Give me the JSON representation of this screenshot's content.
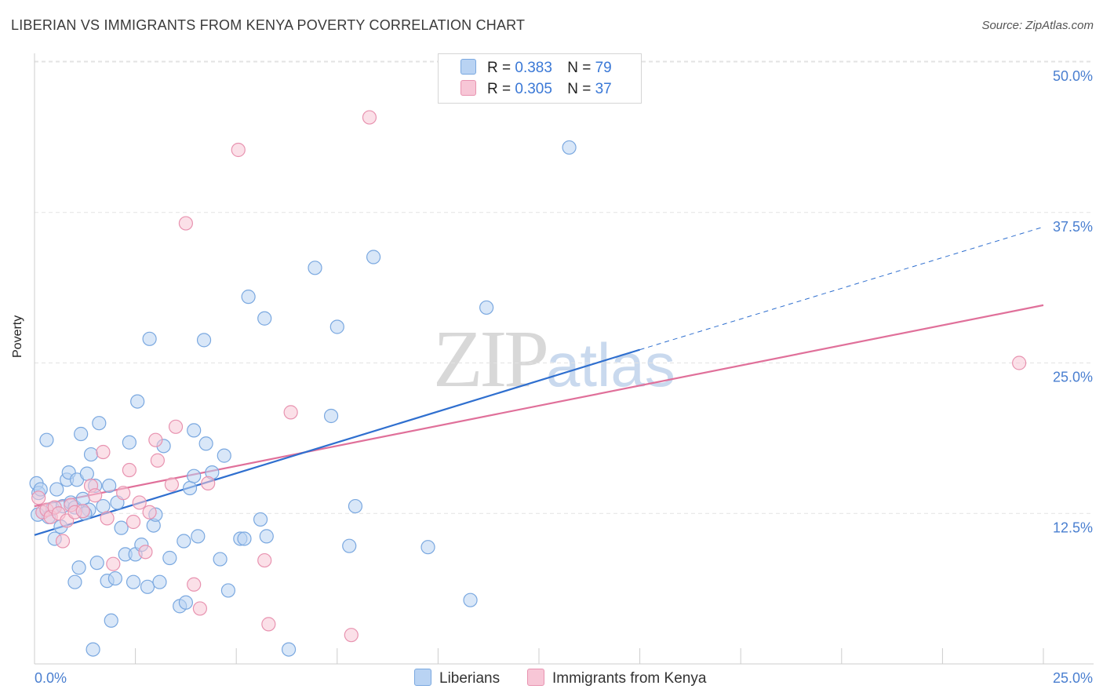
{
  "header": {
    "title": "LIBERIAN VS IMMIGRANTS FROM KENYA POVERTY CORRELATION CHART",
    "source": "Source: ZipAtlas.com"
  },
  "watermark": {
    "zip": "ZIP",
    "atlas": "atlas"
  },
  "legend": {
    "series": [
      {
        "r_label": "R =",
        "r_value": "0.383",
        "n_label": "N =",
        "n_value": "79"
      },
      {
        "r_label": "R =",
        "r_value": "0.305",
        "n_label": "N =",
        "n_value": "37"
      }
    ]
  },
  "bottom_legend": {
    "liberians": "Liberians",
    "kenya": "Immigrants from Kenya"
  },
  "colors": {
    "liberians_fill": "#b9d3f3",
    "liberians_stroke": "#7aa8e0",
    "liberians_line": "#2f6fcf",
    "kenya_fill": "#f7c6d6",
    "kenya_stroke": "#e893b0",
    "kenya_line": "#e0709a",
    "grid": "#e3e3e3",
    "axis": "#cccccc",
    "tick_text": "#4a7fd0"
  },
  "chart_data": {
    "type": "scatter",
    "title": "LIBERIAN VS IMMIGRANTS FROM KENYA POVERTY CORRELATION CHART",
    "xlabel": "",
    "ylabel": "Poverty",
    "xlim": [
      0,
      25
    ],
    "ylim": [
      0,
      50.0
    ],
    "x_tick_labels": [
      "0.0%",
      "25.0%"
    ],
    "y_ticks": [
      12.5,
      25.0,
      37.5,
      50.0
    ],
    "y_tick_labels": [
      "12.5%",
      "25.0%",
      "37.5%",
      "50.0%"
    ],
    "series": [
      {
        "name": "Liberians",
        "r": 0.383,
        "n": 79,
        "trend": {
          "x0": 0,
          "y0": 10.7,
          "x1": 15,
          "y1": 26.1,
          "dash_to_x": 25,
          "dash_to_y": 36.3
        },
        "points": [
          [
            0.05,
            15.0
          ],
          [
            0.1,
            14.2
          ],
          [
            0.15,
            14.5
          ],
          [
            0.2,
            12.6
          ],
          [
            0.3,
            18.6
          ],
          [
            0.35,
            12.2
          ],
          [
            0.45,
            12.9
          ],
          [
            0.5,
            10.4
          ],
          [
            0.55,
            14.5
          ],
          [
            0.65,
            11.4
          ],
          [
            0.7,
            13.1
          ],
          [
            0.8,
            15.3
          ],
          [
            0.85,
            15.9
          ],
          [
            0.9,
            13.4
          ],
          [
            1.0,
            13.0
          ],
          [
            1.0,
            6.8
          ],
          [
            1.05,
            15.3
          ],
          [
            1.1,
            8.0
          ],
          [
            1.15,
            19.1
          ],
          [
            1.2,
            13.7
          ],
          [
            1.3,
            15.8
          ],
          [
            1.35,
            12.8
          ],
          [
            1.4,
            17.4
          ],
          [
            1.45,
            1.2
          ],
          [
            1.5,
            14.8
          ],
          [
            1.55,
            8.4
          ],
          [
            1.6,
            20.0
          ],
          [
            1.7,
            13.1
          ],
          [
            1.8,
            6.9
          ],
          [
            1.85,
            14.8
          ],
          [
            1.9,
            3.6
          ],
          [
            2.0,
            7.1
          ],
          [
            2.05,
            13.4
          ],
          [
            2.15,
            11.3
          ],
          [
            2.25,
            9.1
          ],
          [
            2.35,
            18.4
          ],
          [
            2.45,
            6.8
          ],
          [
            2.5,
            9.1
          ],
          [
            2.55,
            21.8
          ],
          [
            2.65,
            9.9
          ],
          [
            2.8,
            6.4
          ],
          [
            2.85,
            27.0
          ],
          [
            2.95,
            11.5
          ],
          [
            3.0,
            12.4
          ],
          [
            3.1,
            6.8
          ],
          [
            3.2,
            18.1
          ],
          [
            3.35,
            8.8
          ],
          [
            3.6,
            4.8
          ],
          [
            3.7,
            10.2
          ],
          [
            3.75,
            5.1
          ],
          [
            3.85,
            14.6
          ],
          [
            3.95,
            15.6
          ],
          [
            3.95,
            19.4
          ],
          [
            4.05,
            10.6
          ],
          [
            4.2,
            26.9
          ],
          [
            4.25,
            18.3
          ],
          [
            4.4,
            15.9
          ],
          [
            4.6,
            8.7
          ],
          [
            4.7,
            17.3
          ],
          [
            4.8,
            6.1
          ],
          [
            5.1,
            10.4
          ],
          [
            5.2,
            10.4
          ],
          [
            5.3,
            30.5
          ],
          [
            5.6,
            12.0
          ],
          [
            5.7,
            28.7
          ],
          [
            5.75,
            10.6
          ],
          [
            6.3,
            1.2
          ],
          [
            6.95,
            32.9
          ],
          [
            7.35,
            20.6
          ],
          [
            7.5,
            28.0
          ],
          [
            7.8,
            9.8
          ],
          [
            7.95,
            13.1
          ],
          [
            8.4,
            33.8
          ],
          [
            9.75,
            9.7
          ],
          [
            10.8,
            5.3
          ],
          [
            11.2,
            29.6
          ],
          [
            13.25,
            42.9
          ],
          [
            0.08,
            12.4
          ],
          [
            1.25,
            12.5
          ]
        ]
      },
      {
        "name": "Immigrants from Kenya",
        "r": 0.305,
        "n": 37,
        "trend": {
          "x0": 0,
          "y0": 13.1,
          "x1": 25,
          "y1": 29.8
        },
        "points": [
          [
            0.1,
            13.8
          ],
          [
            0.2,
            12.6
          ],
          [
            0.3,
            12.8
          ],
          [
            0.4,
            12.2
          ],
          [
            0.5,
            13.0
          ],
          [
            0.6,
            12.5
          ],
          [
            0.7,
            10.2
          ],
          [
            0.8,
            11.9
          ],
          [
            0.9,
            13.2
          ],
          [
            1.0,
            12.6
          ],
          [
            1.2,
            12.7
          ],
          [
            1.4,
            14.8
          ],
          [
            1.5,
            14.0
          ],
          [
            1.7,
            17.6
          ],
          [
            1.8,
            12.1
          ],
          [
            1.95,
            8.3
          ],
          [
            2.2,
            14.2
          ],
          [
            2.35,
            16.1
          ],
          [
            2.45,
            11.8
          ],
          [
            2.6,
            13.4
          ],
          [
            2.75,
            9.3
          ],
          [
            2.85,
            12.6
          ],
          [
            3.0,
            18.6
          ],
          [
            3.05,
            16.9
          ],
          [
            3.4,
            14.9
          ],
          [
            3.5,
            19.7
          ],
          [
            3.75,
            36.6
          ],
          [
            3.95,
            6.6
          ],
          [
            4.1,
            4.6
          ],
          [
            4.3,
            15.0
          ],
          [
            5.05,
            42.7
          ],
          [
            5.7,
            8.6
          ],
          [
            5.8,
            3.3
          ],
          [
            6.35,
            20.9
          ],
          [
            7.85,
            2.4
          ],
          [
            8.3,
            45.4
          ],
          [
            24.4,
            25.0
          ]
        ]
      }
    ]
  }
}
